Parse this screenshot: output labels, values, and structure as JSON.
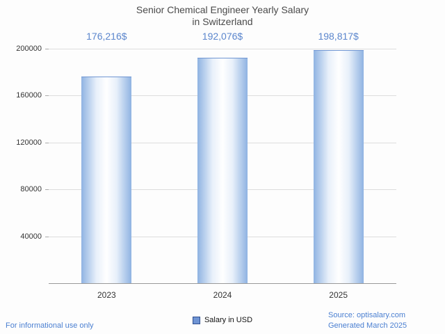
{
  "title": {
    "line1": "Senior Chemical Engineer Yearly Salary",
    "line2": "in Switzerland"
  },
  "chart_data": {
    "type": "bar",
    "title": "Senior Chemical Engineer Yearly Salary in Switzerland",
    "categories": [
      "2023",
      "2024",
      "2025"
    ],
    "values": [
      176216,
      192076,
      198817
    ],
    "value_labels": [
      "176,216$",
      "192,076$",
      "198,817$"
    ],
    "ylim": [
      0,
      200000
    ],
    "yticks": [
      40000,
      80000,
      120000,
      160000,
      200000
    ],
    "ytick_labels": [
      "40000",
      "80000",
      "120000",
      "160000",
      "200000"
    ],
    "grid": true,
    "legend": {
      "label": "Salary in USD",
      "position": "bottom-center"
    },
    "bar_style": {
      "edge_color": "#8fb3e2",
      "mid_color": "#e8f0fa",
      "center_color": "#ffffff",
      "top_border_color": "#7096d2"
    }
  },
  "footer": {
    "left": "For informational use only",
    "source": "Source: optisalary.com",
    "generated": "Generated March 2025"
  },
  "colors": {
    "value_label": "#5b86cd",
    "footer_text": "#4a7fd1",
    "title_text": "#4a4a4a",
    "axis_line": "#999999",
    "gridline": "#dddddd",
    "tick_text": "#333333",
    "legend_marker_fill": "#6f94d4",
    "legend_marker_border": "#2f4f8f"
  }
}
